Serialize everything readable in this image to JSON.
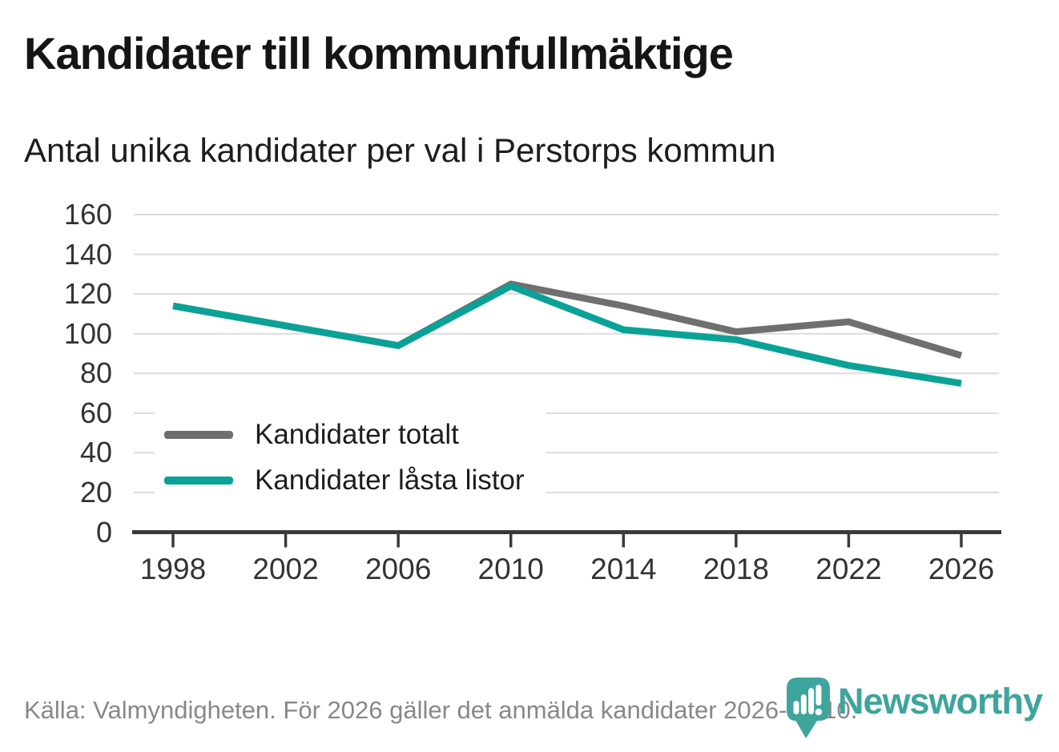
{
  "chart_data": {
    "type": "line",
    "title": "Kandidater till kommunfullmäktige",
    "subtitle": "Antal unika kandidater per val i Perstorps kommun",
    "categories": [
      "1998",
      "2002",
      "2006",
      "2010",
      "2014",
      "2018",
      "2022",
      "2026"
    ],
    "series": [
      {
        "name": "Kandidater totalt",
        "color": "#6F6F6F",
        "values": [
          114,
          104,
          94,
          125,
          114,
          101,
          106,
          89
        ]
      },
      {
        "name": "Kandidater låsta listor",
        "color": "#0AA296",
        "values": [
          114,
          104,
          94,
          124,
          102,
          97,
          84,
          75
        ]
      }
    ],
    "ylim": [
      0,
      160
    ],
    "y_ticks": [
      0,
      20,
      40,
      60,
      80,
      100,
      120,
      140,
      160
    ],
    "grid": "horizontal-gridlines",
    "legend_position": "inside-bottom-left"
  },
  "footer": {
    "source_text": "Källa: Valmyndigheten. För 2026 gäller det anmälda kandidater 2026-04-10.",
    "brand": "Newsworthy"
  },
  "theme": {
    "title_color": "#151515",
    "subtitle_color": "#1d1d1d",
    "tick_color": "#333333",
    "grid_color": "#dcdcdc",
    "axis_color": "#3a3a3a",
    "footer_color": "#888888",
    "brand_teal": "#3da59c"
  }
}
